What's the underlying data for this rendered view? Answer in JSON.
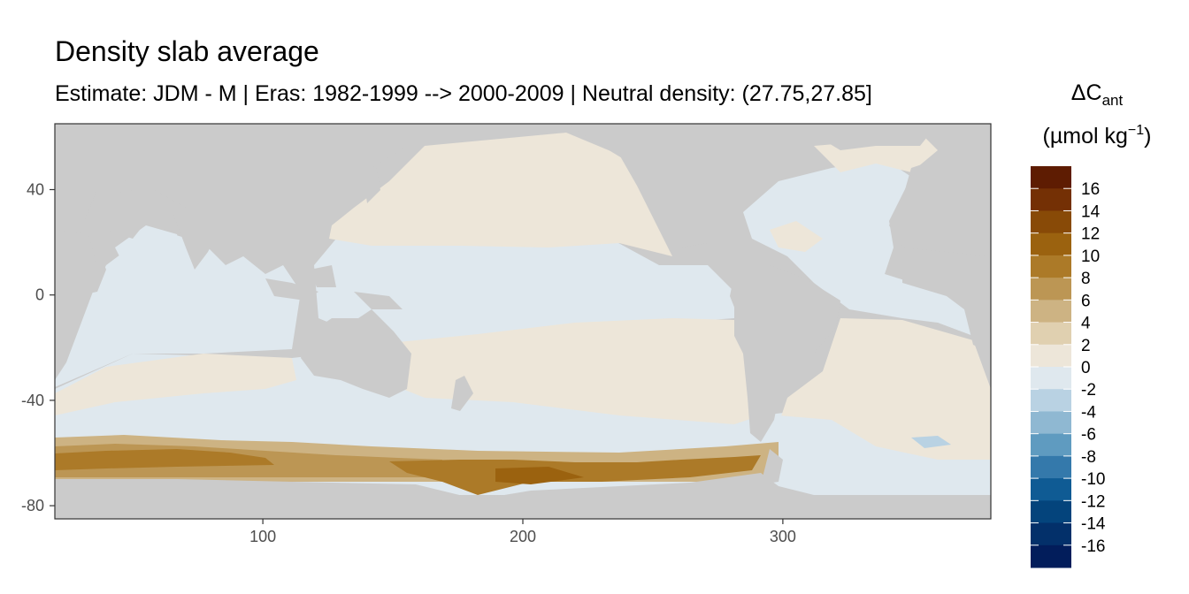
{
  "chart_data": {
    "type": "heatmap",
    "title": "Density slab average",
    "subtitle": "Estimate: JDM - M | Eras: 1982-1999 --> 2000-2009 | Neutral density: (27.75,27.85]",
    "xlabel": "",
    "ylabel": "",
    "xlim": [
      20,
      380
    ],
    "ylim": [
      -85,
      65
    ],
    "x_ticks": [
      100,
      200,
      300
    ],
    "y_ticks": [
      40,
      0,
      -40,
      -80
    ],
    "grid": false,
    "legend": {
      "placement": "right",
      "title_main": "ΔC",
      "title_sub": "ant",
      "unit": "(µmol kg",
      "unit_sup": "−1",
      "unit_close": ")",
      "labels": [
        "16",
        "14",
        "12",
        "10",
        "8",
        "6",
        "4",
        "2",
        "0",
        "-2",
        "-4",
        "-6",
        "-8",
        "-10",
        "-12",
        "-14",
        "-16"
      ],
      "colors": [
        "#5e1c02",
        "#743005",
        "#884a07",
        "#9b620f",
        "#ac7a28",
        "#bc9654",
        "#cdb383",
        "#e0d0b0",
        "#ede6d9",
        "#dfe8ee",
        "#b9d2e3",
        "#8fb8d2",
        "#5f9bc0",
        "#3479ab",
        "#0f5b94",
        "#04447c",
        "#03306a",
        "#021d5b"
      ]
    },
    "land_color": "#cbcbcb",
    "regions": [
      {
        "name": "north-pacific",
        "value": 1
      },
      {
        "name": "equatorial-pacific",
        "value": -1
      },
      {
        "name": "south-pacific-midlatitude",
        "value": 1
      },
      {
        "name": "southern-ocean-belt",
        "value": -1
      },
      {
        "name": "antarctic-margin-indian",
        "value": 9
      },
      {
        "name": "ross-sea",
        "value": 10
      },
      {
        "name": "indian-ocean",
        "value": -1
      },
      {
        "name": "north-atlantic",
        "value": -1
      },
      {
        "name": "south-atlantic",
        "value": 1
      }
    ]
  }
}
